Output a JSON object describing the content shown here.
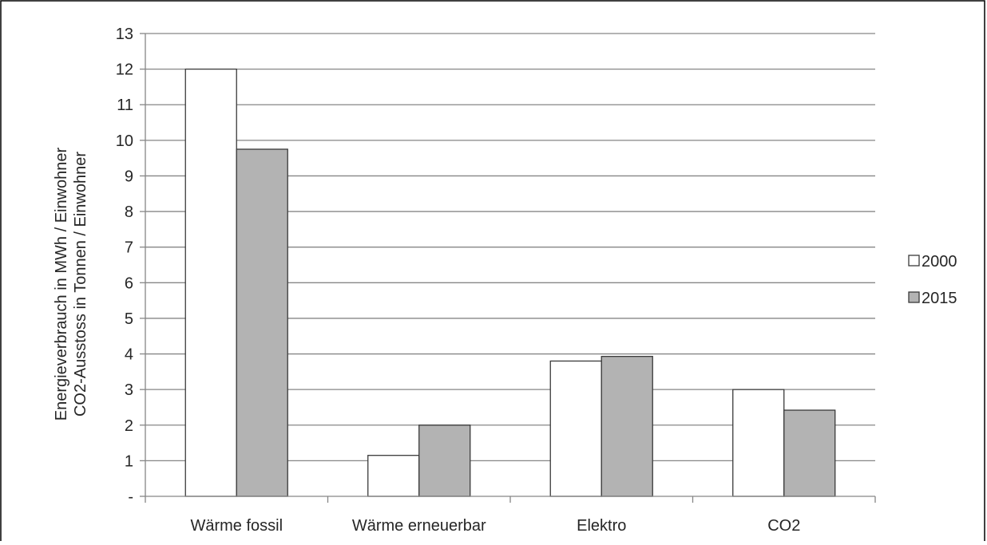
{
  "chart_data": {
    "type": "bar",
    "categories": [
      "Wärme fossil",
      "Wärme erneuerbar",
      "Elektro",
      "CO2"
    ],
    "series": [
      {
        "name": "2000",
        "values": [
          12.0,
          1.15,
          3.8,
          3.0
        ],
        "color": "#ffffff"
      },
      {
        "name": "2015",
        "values": [
          9.75,
          2.0,
          3.93,
          2.42
        ],
        "color": "#b3b3b3"
      }
    ],
    "ylabel_lines": [
      "Energieverbrauch in MWh / Einwohner",
      "CO2-Ausstoss in Tonnen / Einwohner"
    ],
    "ylim": [
      0,
      13
    ],
    "y_ticks": [
      "-",
      "1",
      "2",
      "3",
      "4",
      "5",
      "6",
      "7",
      "8",
      "9",
      "10",
      "11",
      "12",
      "13"
    ],
    "grid": true,
    "legend_position": "right"
  }
}
